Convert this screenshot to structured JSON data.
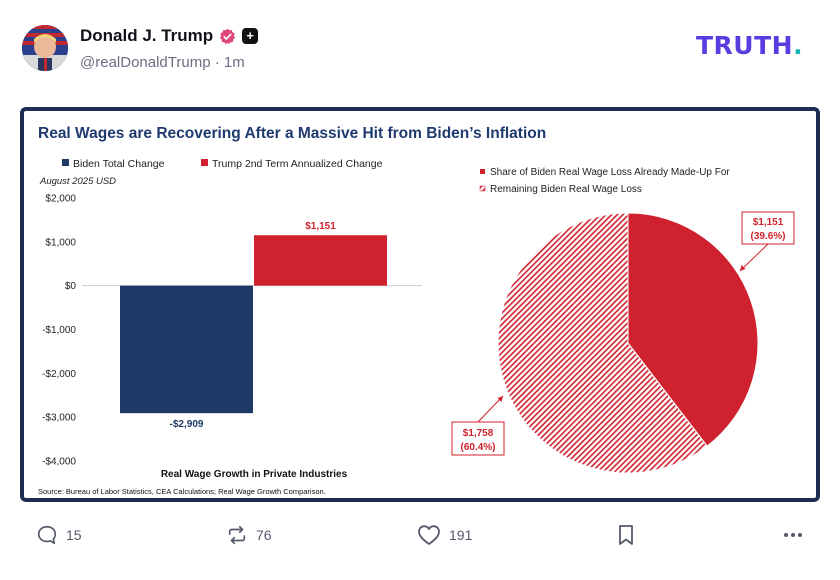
{
  "post": {
    "author_name": "Donald J. Trump",
    "handle": "@realDonaldTrump",
    "separator": "·",
    "time_ago": "1m",
    "plus_badge": "+",
    "logo_main": "TRUTH",
    "logo_dot": "."
  },
  "colors": {
    "navy": "#1f3966",
    "red": "#d0222e",
    "title_blue": "#1f3a6e",
    "logo_purple": "#5a3ce0",
    "logo_teal": "#16b6b6",
    "verified_pink": "#e0457b"
  },
  "chart_data": [
    {
      "type": "bar",
      "title": "Real Wages are Recovering After a Massive Hit from Biden’s Inflation",
      "subtitle": "August 2025 USD",
      "xlabel": "Real Wage Growth in Private Industries",
      "ylabel": "",
      "ylim": [
        -4000,
        2000
      ],
      "yticks": [
        {
          "value": 2000,
          "label": "$2,000"
        },
        {
          "value": 1000,
          "label": "$1,000"
        },
        {
          "value": 0,
          "label": "$0"
        },
        {
          "value": -1000,
          "label": "-$1,000"
        },
        {
          "value": -2000,
          "label": "-$2,000"
        },
        {
          "value": -3000,
          "label": "-$3,000"
        },
        {
          "value": -4000,
          "label": "-$4,000"
        }
      ],
      "legend": "top-left",
      "series": [
        {
          "name": "Biden Total Change",
          "value": -2909,
          "label": "-$2,909",
          "color": "#1f3966"
        },
        {
          "name": "Trump 2nd Term Annualized Change",
          "value": 1151,
          "label": "$1,151",
          "color": "#d0222e"
        }
      ],
      "grid": false,
      "source": "Source: Bureau of Labor Statistics, CEA Calculations; Real Wage Growth Comparison."
    },
    {
      "type": "pie",
      "legend": "top-right",
      "slices": [
        {
          "name": "Share of Biden Real Wage Loss Already Made-Up For",
          "value": 1151,
          "percent": 39.6,
          "label_value": "$1,151",
          "label_pct": "(39.6%)",
          "color": "#d0222e",
          "pattern": "solid"
        },
        {
          "name": "Remaining Biden Real Wage Loss",
          "value": 1758,
          "percent": 60.4,
          "label_value": "$1,758",
          "label_pct": "(60.4%)",
          "color": "#d0222e",
          "pattern": "hatched"
        }
      ]
    }
  ],
  "actions": {
    "replies": "15",
    "retruths": "76",
    "likes": "191",
    "bookmark_icon": "bookmark-icon",
    "more_icon": "more-icon"
  }
}
